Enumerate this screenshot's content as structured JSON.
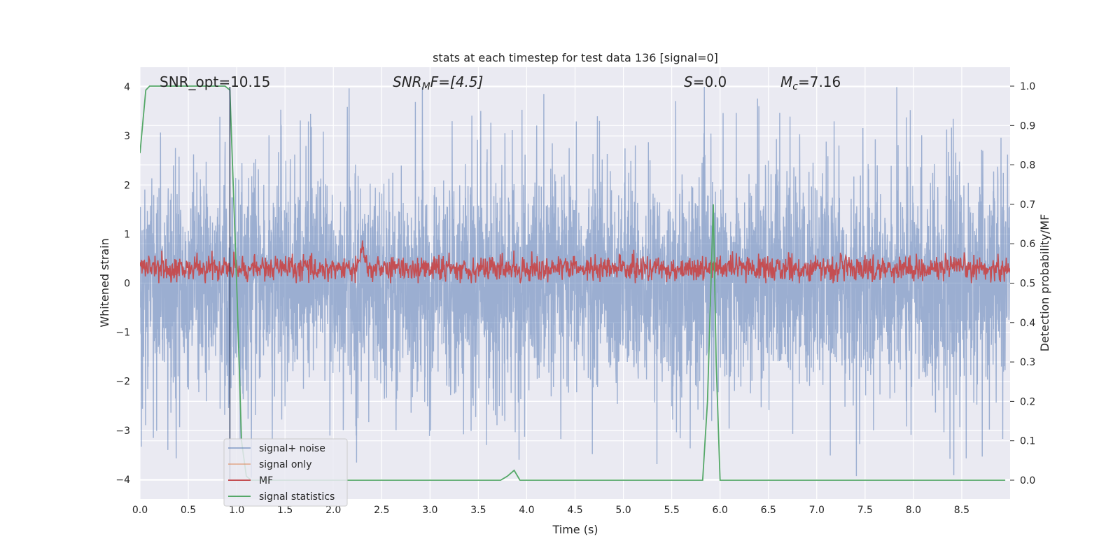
{
  "chart_data": {
    "type": "line",
    "title": "stats at each timestep for test data 136 [signal=0]",
    "xlabel": "Time (s)",
    "ylabel": "Whitened strain",
    "ylabel_right": "Detection probability/MF",
    "xlim": [
      0.0,
      9.0
    ],
    "ylim": [
      -4.4,
      4.4
    ],
    "ylim_right": [
      -0.048,
      1.048
    ],
    "grid": true,
    "x_ticks": [
      "0.0",
      "0.5",
      "1.0",
      "1.5",
      "2.0",
      "2.5",
      "3.0",
      "3.5",
      "4.0",
      "4.5",
      "5.0",
      "5.5",
      "6.0",
      "6.5",
      "7.0",
      "7.5",
      "8.0",
      "8.5"
    ],
    "y_ticks": [
      "−4",
      "−3",
      "−2",
      "−1",
      "0",
      "1",
      "2",
      "3",
      "4"
    ],
    "y_ticks_right": [
      "0.0",
      "0.1",
      "0.2",
      "0.3",
      "0.4",
      "0.5",
      "0.6",
      "0.7",
      "0.8",
      "0.9",
      "1.0"
    ],
    "annotations": {
      "snr_opt": "SNR_opt=10.15",
      "snr_mf_base": "SNR",
      "snr_mf_sub": "M",
      "snr_mf_rest": "F=[4.5]",
      "s_base": "S",
      "s_rest": "=0.0",
      "mc_base": "M",
      "mc_sub": "c",
      "mc_rest": "=7.16"
    },
    "legend_position": "lower-left",
    "series": [
      {
        "name": "signal+ noise",
        "color": "#4c72b0",
        "axis": "left",
        "description_values": {
          "typical_abs_range": [
            1.6,
            2.4
          ],
          "max": 4.0,
          "min": -4.0
        }
      },
      {
        "name": "signal only",
        "color": "#dd8452",
        "axis": "left",
        "values": []
      },
      {
        "name": "MF",
        "color": "#c44e52",
        "axis": "left",
        "description_values": {
          "range": [
            0.0,
            1.0
          ],
          "mean": 0.3
        }
      },
      {
        "name": "signal statistics",
        "color": "#55a868",
        "axis": "right",
        "x": [
          0.0,
          0.06,
          0.1,
          0.2,
          0.4,
          0.6,
          0.8,
          0.88,
          0.93,
          1.0,
          1.05,
          1.1,
          1.15,
          1.2,
          1.5,
          2.0,
          3.0,
          3.73,
          3.8,
          3.87,
          3.93,
          4.0,
          5.0,
          5.82,
          5.87,
          5.93,
          5.96,
          6.0,
          7.0,
          8.0,
          8.95
        ],
        "y": [
          0.83,
          0.99,
          1.0,
          1.0,
          1.0,
          1.0,
          1.0,
          1.0,
          0.99,
          0.5,
          0.1,
          0.01,
          0.0,
          0.0,
          0.0,
          0.0,
          0.0,
          0.0,
          0.01,
          0.025,
          0.0,
          0.0,
          0.0,
          0.0,
          0.2,
          0.7,
          0.3,
          0.0,
          0.0,
          0.0,
          0.0
        ]
      }
    ]
  }
}
